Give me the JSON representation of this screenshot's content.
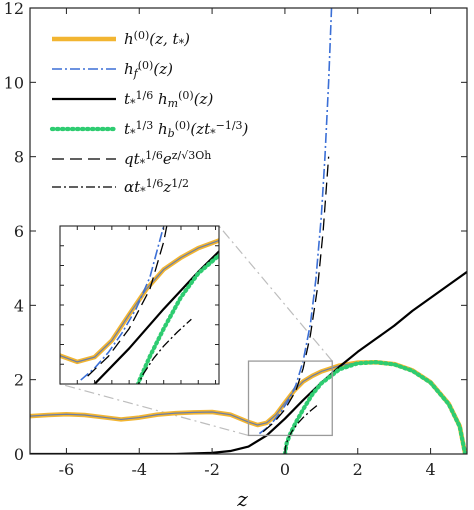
{
  "chart_data": {
    "type": "line",
    "xlabel": "z",
    "ylabel": "",
    "xlim": [
      -7,
      5
    ],
    "ylim": [
      0,
      12
    ],
    "x_ticks": [
      -6,
      -4,
      -2,
      0,
      2,
      4
    ],
    "y_ticks": [
      0,
      2,
      4,
      6,
      8,
      10,
      12
    ],
    "x_tick_labels": [
      "-6",
      "-4",
      "-2",
      "0",
      "2",
      "4"
    ],
    "y_tick_labels": [
      "0",
      "2",
      "4",
      "6",
      "8",
      "10",
      "12"
    ],
    "grid": false,
    "legend_position": "top-left",
    "colors": {
      "h0": "#f2b531",
      "hf": "#3b6fd6",
      "hm": "#000000",
      "hb": "#2ecc71",
      "approx": "#000000",
      "zoom_box": "#9a9a9a",
      "inset_links": "#bdbdbd"
    },
    "series": [
      {
        "name": "h^(0)(z, t*)",
        "style": "solid-thick",
        "x": [
          -7,
          -6.5,
          -6,
          -5.5,
          -5,
          -4.5,
          -4,
          -3.5,
          -3,
          -2.5,
          -2,
          -1.5,
          -1,
          -0.75,
          -0.5,
          -0.25,
          0,
          0.25,
          0.5,
          0.75,
          1.0,
          1.5,
          2.0,
          2.5,
          3.0,
          3.5,
          4.0,
          4.5,
          4.8,
          4.95
        ],
        "y": [
          1.02,
          1.05,
          1.07,
          1.05,
          0.99,
          0.93,
          0.98,
          1.06,
          1.1,
          1.12,
          1.13,
          1.06,
          0.86,
          0.78,
          0.84,
          1.05,
          1.38,
          1.7,
          1.95,
          2.1,
          2.22,
          2.38,
          2.46,
          2.47,
          2.42,
          2.25,
          1.93,
          1.35,
          0.75,
          0.0
        ]
      },
      {
        "name": "h_f^(0)(z)",
        "style": "dashdot",
        "x": [
          -0.7,
          -0.5,
          -0.3,
          -0.1,
          0.1,
          0.3,
          0.5,
          0.7,
          0.85,
          1.0,
          1.1,
          1.2,
          1.28
        ],
        "y": [
          0.55,
          0.7,
          0.9,
          1.15,
          1.45,
          1.85,
          2.5,
          3.5,
          4.7,
          6.4,
          8.0,
          10.0,
          12.0
        ]
      },
      {
        "name": "t*^(1/6) h_m^(0)(z)",
        "style": "solid",
        "x": [
          -7,
          -3,
          -2,
          -1.5,
          -1,
          -0.5,
          0,
          0.5,
          1,
          1.5,
          2,
          2.5,
          3,
          3.5,
          4,
          4.5,
          5
        ],
        "y": [
          0.0,
          0.0,
          0.03,
          0.08,
          0.2,
          0.5,
          0.95,
          1.45,
          1.92,
          2.35,
          2.75,
          3.1,
          3.45,
          3.85,
          4.2,
          4.55,
          4.9
        ]
      },
      {
        "name": "t*^(1/3) h_b^(0)(z t*^(-1/3))",
        "style": "dotted",
        "x": [
          0.0,
          0.05,
          0.15,
          0.3,
          0.5,
          0.75,
          1.0,
          1.5,
          2.0,
          2.5,
          3.0,
          3.5,
          4.0,
          4.5,
          4.8,
          4.95
        ],
        "y": [
          0.0,
          0.3,
          0.55,
          0.85,
          1.2,
          1.6,
          1.9,
          2.28,
          2.44,
          2.47,
          2.41,
          2.24,
          1.92,
          1.34,
          0.74,
          0.0
        ]
      },
      {
        "name": "q t*^(1/6) e^(z/√(3Oh))",
        "style": "dashed-long",
        "x": [
          -0.6,
          -0.3,
          0.0,
          0.3,
          0.5,
          0.7,
          0.9,
          1.05,
          1.2
        ],
        "y": [
          0.6,
          0.85,
          1.2,
          1.7,
          2.3,
          3.2,
          4.5,
          6.0,
          8.0
        ]
      },
      {
        "name": "α t*^(1/6) z^(1/2)",
        "style": "dashdot-black",
        "x": [
          0.0,
          0.02,
          0.08,
          0.2,
          0.35,
          0.5,
          0.7,
          0.9
        ],
        "y": [
          0.0,
          0.2,
          0.4,
          0.62,
          0.82,
          0.98,
          1.16,
          1.32
        ]
      }
    ],
    "zoom_box": {
      "xlim": [
        -1.0,
        1.3
      ],
      "ylim": [
        0.5,
        2.5
      ]
    }
  },
  "legend": [
    {
      "key": "h0",
      "label": "h(0)(z, t*)"
    },
    {
      "key": "hf",
      "label": "hf(0)(z)"
    },
    {
      "key": "hm",
      "label": "t*1/6 hm(0)(z)"
    },
    {
      "key": "hb",
      "label": "t*1/3 hb(0)(z t*−1/3)"
    },
    {
      "key": "exp",
      "label": "q t*1/6 ez/√3Oh"
    },
    {
      "key": "sqrt",
      "label": "α t*1/6 z1/2"
    }
  ]
}
